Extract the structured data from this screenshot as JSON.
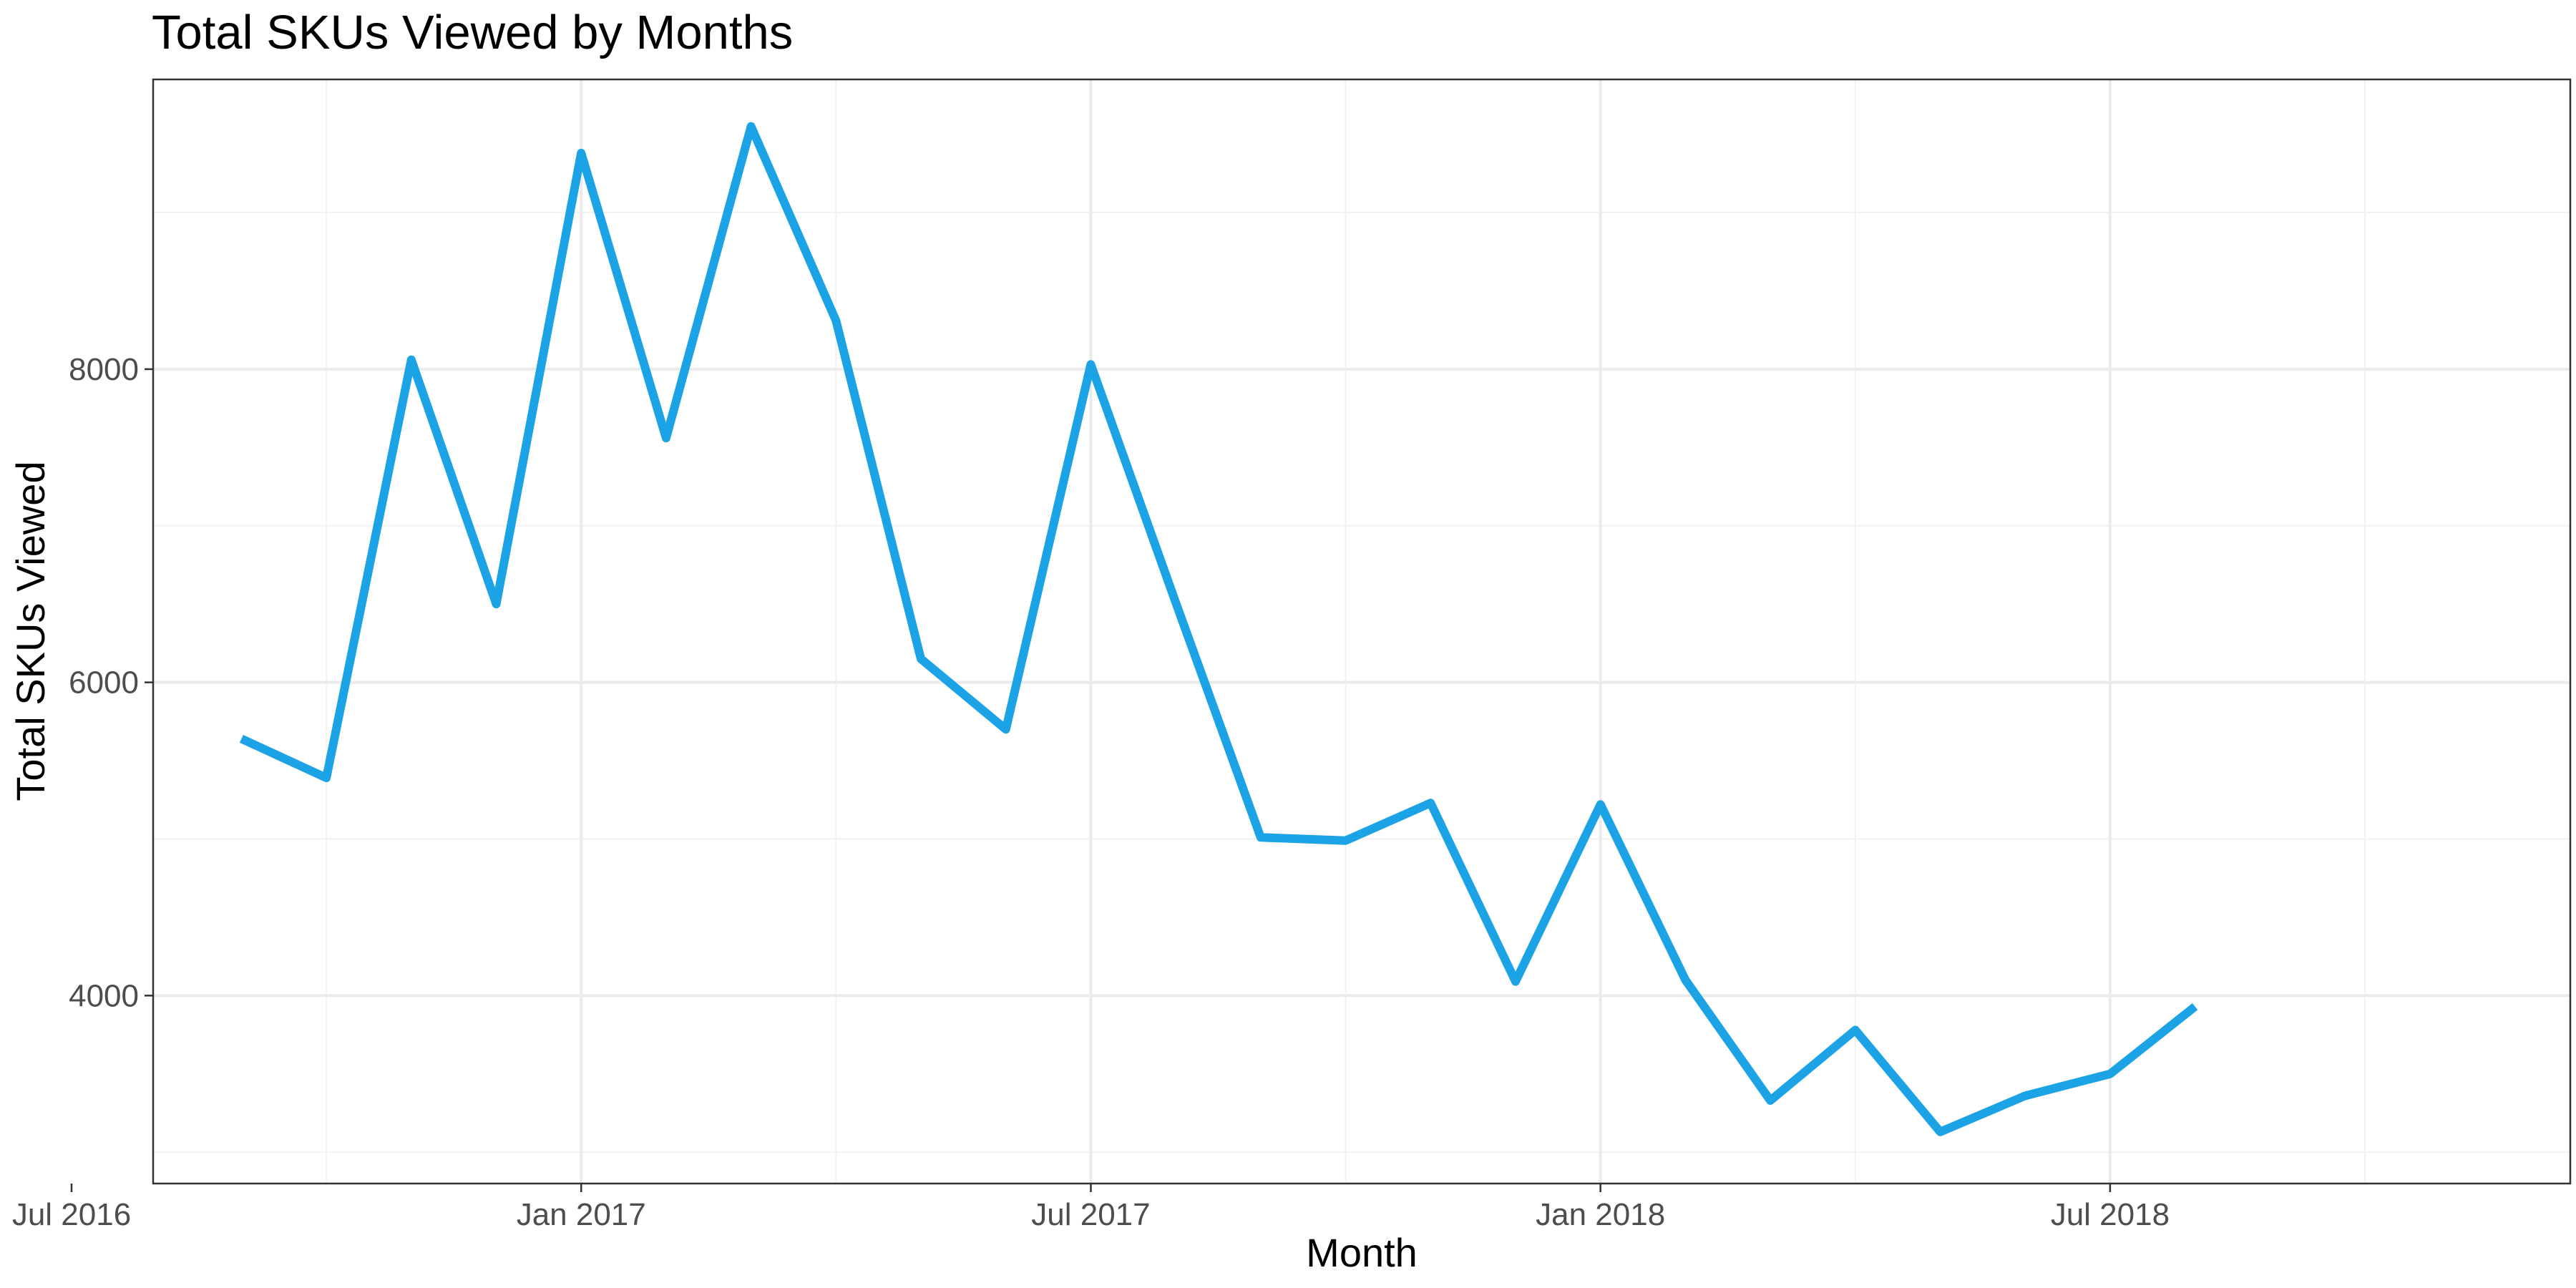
{
  "chart_data": {
    "type": "line",
    "title": "Total SKUs Viewed by Months",
    "xlabel": "Month",
    "ylabel": "Total SKUs Viewed",
    "x_tick_labels": [
      "Jul 2016",
      "Jan 2017",
      "Jul 2017",
      "Jan 2018",
      "Jul 2018"
    ],
    "x_ticks": [
      "2016-07",
      "2017-01",
      "2017-07",
      "2018-01",
      "2018-07"
    ],
    "xlim": [
      "2016-07",
      "2018-10"
    ],
    "y_ticks": [
      4000,
      6000,
      8000
    ],
    "y_tick_labels": [
      "4000",
      "6000",
      "8000"
    ],
    "ylim": [
      2800,
      9850
    ],
    "grid": true,
    "line_color": "#1ba3e6",
    "x": [
      "2016-09",
      "2016-10",
      "2016-11",
      "2016-12",
      "2017-01",
      "2017-02",
      "2017-03",
      "2017-04",
      "2017-05",
      "2017-06",
      "2017-07",
      "2017-08",
      "2017-09",
      "2017-10",
      "2017-11",
      "2017-12",
      "2018-01",
      "2018-02",
      "2018-03",
      "2018-04",
      "2018-05",
      "2018-06",
      "2018-07",
      "2018-08"
    ],
    "series": [
      {
        "values": [
          5640,
          5390,
          8060,
          6500,
          9380,
          7560,
          9550,
          8310,
          6150,
          5700,
          8030,
          6510,
          5010,
          4990,
          5230,
          4090,
          5220,
          4100,
          3330,
          3780,
          3130,
          3360,
          3500,
          3930
        ]
      }
    ]
  }
}
